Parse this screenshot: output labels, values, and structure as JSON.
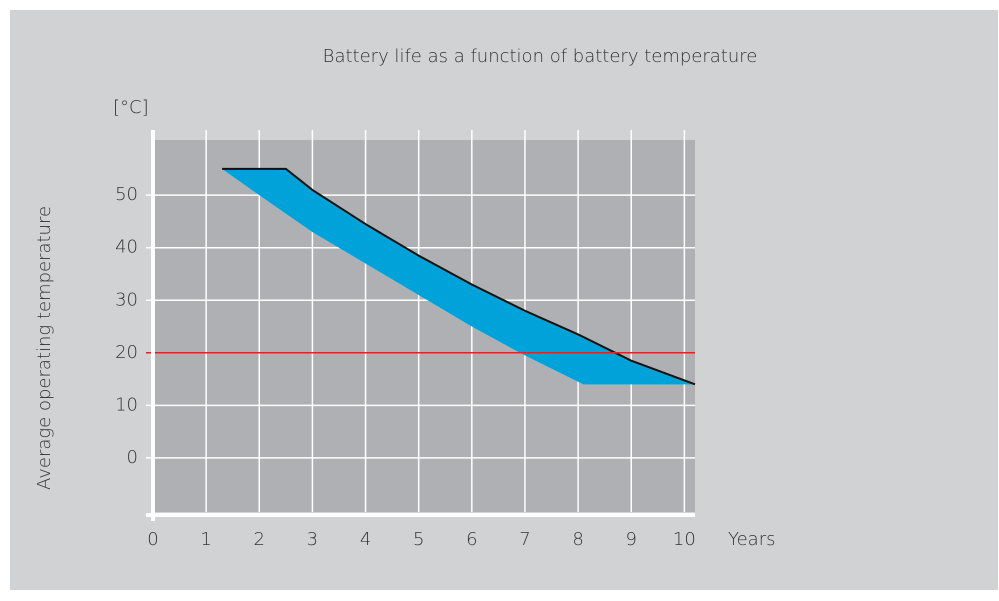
{
  "chart_data": {
    "type": "band",
    "title": "Battery life as a function of battery temperature",
    "xlabel": "Years",
    "ylabel": "Average operating temperature",
    "yunit": "[°C]",
    "xlim": [
      0,
      10.2
    ],
    "ylim": [
      -10.3,
      60.5
    ],
    "xticks": [
      0,
      1,
      2,
      3,
      4,
      5,
      6,
      7,
      8,
      9,
      10
    ],
    "yticks": [
      0,
      10,
      20,
      30,
      40,
      50
    ],
    "grid": true,
    "fill_color": "#00a3d9",
    "series": [
      {
        "color": "#111111",
        "x": [
          1.3,
          2.5,
          3,
          4,
          5,
          6,
          7,
          8,
          9,
          10.2
        ],
        "values": [
          55,
          55,
          51,
          44.5,
          38.5,
          33,
          28,
          23.5,
          18.5,
          14
        ]
      },
      {
        "x": [
          10.2,
          8.1,
          7,
          6,
          5,
          4,
          3,
          2,
          1.3
        ],
        "values": [
          14,
          14,
          19.5,
          25,
          31,
          37,
          43,
          50,
          55
        ]
      }
    ],
    "reference_line": {
      "value": 20,
      "color": "#d9262b"
    }
  }
}
